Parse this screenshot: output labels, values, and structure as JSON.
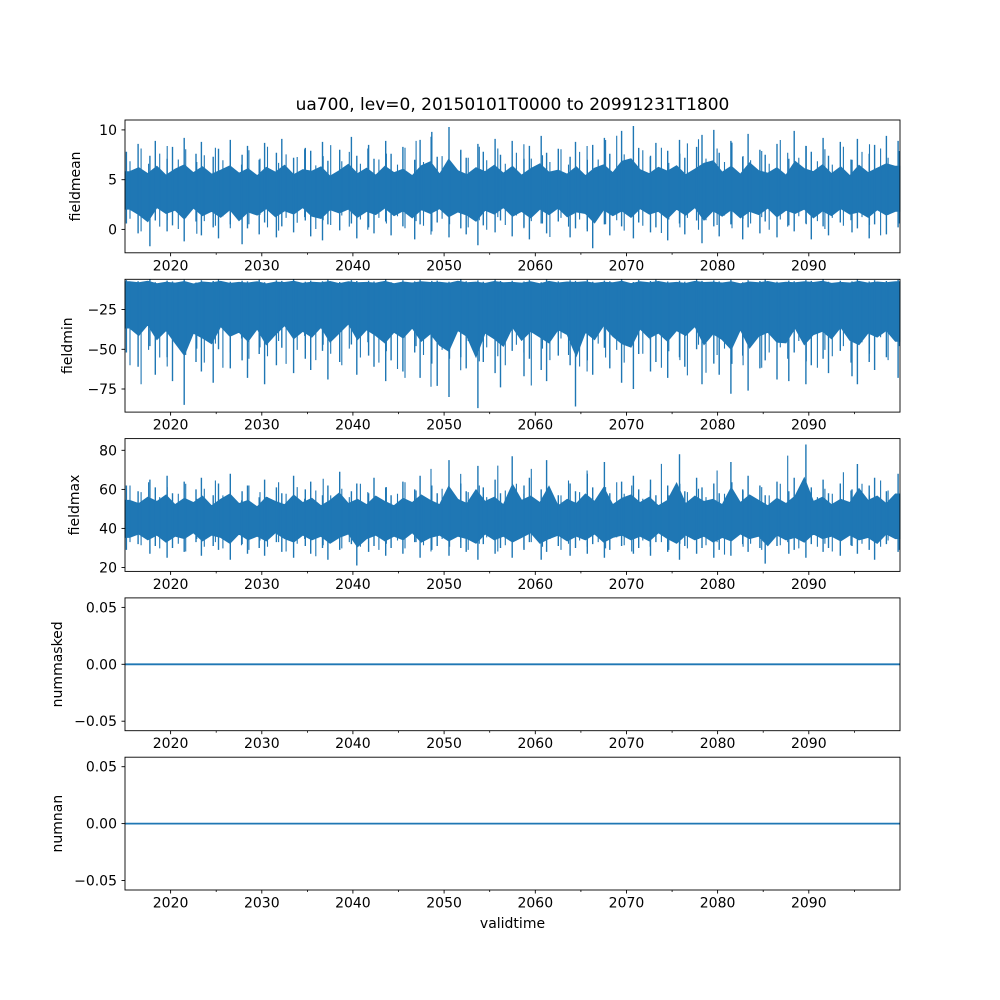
{
  "figure": {
    "title": "ua700, lev=0, 20150101T0000 to 20991231T1800",
    "xlabel": "validtime",
    "line_color": "#1f77b4",
    "background": "#ffffff"
  },
  "axis": {
    "x_start": 2015,
    "x_end": 2100,
    "xticks": [
      2020,
      2030,
      2040,
      2050,
      2060,
      2070,
      2080,
      2090
    ],
    "xtick_labels": [
      "2020",
      "2030",
      "2040",
      "2050",
      "2060",
      "2070",
      "2080",
      "2090"
    ],
    "xminor_ticks": [
      2025,
      2035,
      2045,
      2055,
      2065,
      2075,
      2085,
      2095
    ]
  },
  "chart_data": [
    {
      "type": "line",
      "name": "fieldmean",
      "ylabel": "fieldmean",
      "ylim": [
        -2.35,
        11.0
      ],
      "yticks": [
        0,
        5,
        10
      ],
      "ytick_labels": [
        "0",
        "5",
        "10"
      ],
      "render": "noisy-band",
      "years_start": 2015,
      "core": {
        "center": 3.8,
        "shrink_hi": 0.5,
        "shrink_lo": 0.55
      },
      "hi": [
        7.8,
        8.6,
        7.4,
        8.9,
        7.1,
        8.3,
        9.2,
        7.6,
        8.8,
        7.3,
        8.1,
        9.0,
        7.5,
        8.4,
        7.0,
        8.7,
        7.7,
        9.1,
        7.2,
        8.2,
        7.9,
        8.8,
        6.9,
        8.0,
        9.3,
        7.4,
        8.5,
        7.1,
        8.9,
        7.6,
        8.3,
        7.0,
        9.0,
        9.8,
        7.3,
        10.3,
        8.0,
        7.2,
        8.6,
        7.8,
        9.1,
        7.5,
        8.9,
        7.1,
        8.4,
        9.4,
        7.7,
        8.1,
        7.3,
        8.8,
        7.0,
        8.5,
        9.2,
        7.6,
        9.9,
        10.4,
        8.2,
        7.4,
        8.7,
        7.9,
        9.0,
        7.2,
        8.3,
        9.5,
        10.0,
        7.7,
        8.9,
        7.3,
        9.6,
        8.0,
        7.5,
        8.6,
        7.1,
        9.9,
        8.4,
        7.8,
        9.2,
        7.4,
        8.8,
        7.0,
        9.1,
        7.6,
        8.5,
        9.4,
        8.9
      ],
      "lo": [
        0.6,
        -0.4,
        -1.7,
        0.9,
        -0.2,
        0.4,
        -1.2,
        0.8,
        -0.6,
        0.2,
        -0.9,
        0.5,
        -1.5,
        0.1,
        -0.5,
        0.7,
        -0.8,
        0.3,
        -0.3,
        0.9,
        -0.7,
        -1.1,
        0.5,
        -0.1,
        0.6,
        -0.9,
        0.2,
        -0.4,
        0.8,
        -0.6,
        0.3,
        -1.0,
        0.5,
        -0.2,
        0.7,
        -0.8,
        0.1,
        -0.5,
        -1.6,
        0.4,
        -0.3,
        0.9,
        -0.7,
        0.2,
        -1.0,
        0.6,
        -0.4,
        0.8,
        -0.8,
        0.1,
        -0.2,
        -1.9,
        0.5,
        -0.6,
        0.3,
        -0.9,
        0.7,
        -0.3,
        0.2,
        -1.1,
        0.6,
        -0.5,
        0.9,
        -1.4,
        0.3,
        -0.7,
        0.5,
        -1.0,
        0.2,
        -0.4,
        0.8,
        -0.8,
        0.4,
        -0.2,
        0.6,
        -1.0,
        0.3,
        -0.6,
        0.7,
        -0.3,
        0.1,
        -0.9,
        0.5,
        -0.5,
        0.2
      ]
    },
    {
      "type": "line",
      "name": "fieldmin",
      "ylabel": "fieldmin",
      "ylim": [
        -89.5,
        -6.0
      ],
      "yticks": [
        -25,
        -50,
        -75
      ],
      "ytick_labels": [
        "−25",
        "−50",
        "−75"
      ],
      "render": "noisy-band",
      "years_start": 2015,
      "core": {
        "center": -20,
        "shrink_hi": 0.92,
        "shrink_lo": 0.52
      },
      "hi": [
        -6.5,
        -7.2,
        -6.1,
        -7.8,
        -6.8,
        -7.4,
        -6.3,
        -8.0,
        -6.6,
        -7.1,
        -6.2,
        -7.6,
        -6.9,
        -7.3,
        -6.4,
        -7.9,
        -6.7,
        -7.0,
        -6.1,
        -7.5,
        -6.8,
        -7.2,
        -6.3,
        -7.7,
        -6.5,
        -7.1,
        -6.9,
        -7.4,
        -6.2,
        -7.8,
        -6.6,
        -7.3,
        -6.4,
        -7.0,
        -6.8,
        -7.5,
        -6.1,
        -7.2,
        -6.7,
        -7.6,
        -6.3,
        -7.1,
        -6.9,
        -7.4,
        -6.5,
        -7.8,
        -6.2,
        -7.3,
        -6.6,
        -7.0,
        -6.4,
        -7.5,
        -6.8,
        -7.2,
        -6.1,
        -7.7,
        -6.5,
        -7.1,
        -6.3,
        -7.4,
        -6.9,
        -7.6,
        -6.2,
        -7.0,
        -6.7,
        -7.3,
        -6.4,
        -7.8,
        -6.6,
        -7.1,
        -6.3,
        -7.5,
        -6.8,
        -7.2,
        -6.5,
        -7.0,
        -6.1,
        -7.6,
        -6.9,
        -7.3,
        -6.2,
        -7.4,
        -6.6,
        -7.1,
        -6.4
      ],
      "lo": [
        -52,
        -61,
        -48,
        -66,
        -55,
        -70,
        -85,
        -58,
        -64,
        -71,
        -50,
        -62,
        -57,
        -68,
        -53,
        -72,
        -60,
        -49,
        -65,
        -56,
        -63,
        -51,
        -69,
        -58,
        -47,
        -66,
        -54,
        -61,
        -70,
        -57,
        -64,
        -52,
        -68,
        -59,
        -73,
        -80,
        -55,
        -62,
        -87,
        -58,
        -65,
        -74,
        -51,
        -67,
        -56,
        -63,
        -70,
        -54,
        -60,
        -86,
        -57,
        -66,
        -49,
        -62,
        -71,
        -75,
        -53,
        -64,
        -58,
        -68,
        -55,
        -61,
        -50,
        -72,
        -59,
        -66,
        -78,
        -54,
        -76,
        -62,
        -57,
        -69,
        -70,
        -52,
        -72,
        -60,
        -56,
        -65,
        -51,
        -67,
        -72,
        -58,
        -63,
        -55,
        -68
      ]
    },
    {
      "type": "line",
      "name": "fieldmax",
      "ylabel": "fieldmax",
      "ylim": [
        18.0,
        86.0
      ],
      "yticks": [
        20,
        40,
        60,
        80
      ],
      "ytick_labels": [
        "20",
        "40",
        "60",
        "80"
      ],
      "render": "noisy-band",
      "years_start": 2015,
      "core": {
        "center": 45,
        "shrink_hi": 0.55,
        "shrink_lo": 0.6
      },
      "hi": [
        62,
        59,
        65,
        61,
        67,
        58,
        64,
        60,
        66,
        57,
        63,
        68,
        59,
        62,
        56,
        65,
        61,
        58,
        67,
        60,
        64,
        57,
        62,
        69,
        59,
        63,
        58,
        66,
        61,
        57,
        64,
        60,
        67,
        62,
        58,
        75,
        63,
        59,
        72,
        61,
        65,
        58,
        77,
        62,
        66,
        60,
        75,
        57,
        63,
        59,
        68,
        61,
        74,
        58,
        64,
        67,
        60,
        65,
        57,
        62,
        78,
        59,
        66,
        61,
        63,
        58,
        74,
        60,
        67,
        62,
        57,
        64,
        59,
        66,
        83,
        61,
        65,
        58,
        63,
        60,
        73,
        62,
        66,
        59,
        68
      ],
      "lo": [
        29,
        32,
        27,
        31,
        25,
        30,
        28,
        33,
        26,
        31,
        29,
        24,
        32,
        27,
        30,
        26,
        33,
        28,
        25,
        31,
        27,
        30,
        24,
        29,
        32,
        21,
        28,
        31,
        26,
        30,
        27,
        33,
        25,
        29,
        31,
        26,
        30,
        28,
        24,
        32,
        27,
        30,
        25,
        29,
        33,
        24,
        28,
        31,
        26,
        30,
        27,
        32,
        25,
        29,
        31,
        27,
        30,
        26,
        33,
        28,
        24,
        31,
        27,
        30,
        25,
        29,
        26,
        32,
        28,
        30,
        22,
        31,
        27,
        29,
        25,
        32,
        28,
        30,
        26,
        31,
        27,
        29,
        24,
        32,
        28
      ]
    },
    {
      "type": "line",
      "name": "nummasked",
      "ylabel": "nummasked",
      "ylim": [
        -0.0583,
        0.0583
      ],
      "yticks": [
        0.05,
        0.0,
        -0.05
      ],
      "ytick_labels": [
        "0.05",
        "0.00",
        "−0.05"
      ],
      "render": "flat-line",
      "value": 0.0
    },
    {
      "type": "line",
      "name": "numnan",
      "ylabel": "numnan",
      "ylim": [
        -0.0583,
        0.0583
      ],
      "yticks": [
        0.05,
        0.0,
        -0.05
      ],
      "ytick_labels": [
        "0.05",
        "0.00",
        "−0.05"
      ],
      "render": "flat-line",
      "value": 0.0
    }
  ]
}
